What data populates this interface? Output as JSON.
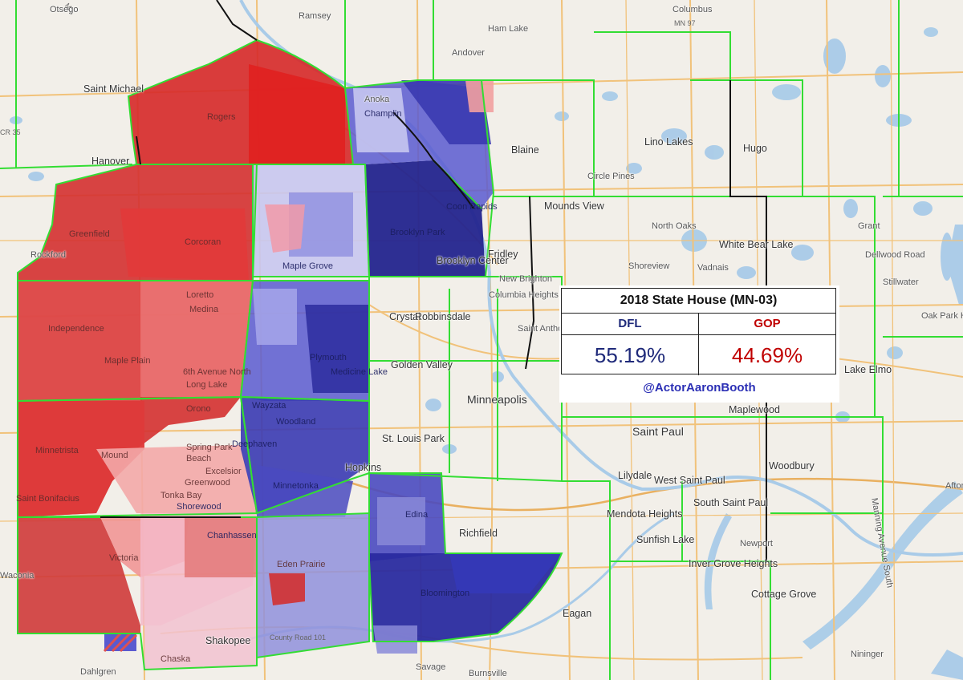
{
  "results": {
    "title": "2018 State House (MN-03)",
    "parties": [
      {
        "name": "DFL",
        "pct": "55.19%",
        "color": "#1f2a7a"
      },
      {
        "name": "GOP",
        "pct": "44.69%",
        "color": "#c00000"
      }
    ],
    "credit": "@ActorAaronBooth",
    "credit_color": "#2b2fb5"
  },
  "colors": {
    "base": "#f2efe9",
    "district_border": "#33dd33",
    "county_line": "#111111",
    "road": "#f1c27a",
    "water": "#a9cbe8",
    "red_strong": "#d62828",
    "red_mid": "#e86a6a",
    "red_light": "#f3a8a8",
    "blue_strong": "#2c2c9e",
    "blue_mid": "#5a5ad0",
    "blue_light": "#c6c6f0"
  },
  "places": {
    "otsego": "Otsego",
    "ramsey": "Ramsey",
    "columbus": "Columbus",
    "ham_lake": "Ham Lake",
    "andover": "Andover",
    "saint_michael": "Saint Michael",
    "anoka": "Anoka",
    "champlin": "Champlin",
    "rogers": "Rogers",
    "blaine": "Blaine",
    "lino_lakes": "Lino Lakes",
    "hugo": "Hugo",
    "hanover": "Hanover",
    "circle_pines": "Circle Pines",
    "coon_rapids": "Coon Rapids",
    "mounds_view": "Mounds View",
    "north_oaks": "North Oaks",
    "white_bear_lake": "White Bear Lake",
    "grant": "Grant",
    "greenfield": "Greenfield",
    "corcoran": "Corcoran",
    "brooklyn_park": "Brooklyn Park",
    "rockford": "Rockford",
    "maple_grove": "Maple Grove",
    "brooklyn_center": "Brooklyn Center",
    "fridley": "Fridley",
    "shoreview": "Shoreview",
    "vadnais": "Vadnais",
    "dellwood_road": "Dellwood Road",
    "new_brighton": "New Brighton",
    "stillwater": "Stillwater",
    "oak_park": "Oak Park He",
    "loretto": "Loretto",
    "medina": "Medina",
    "columbia_heights": "Columbia Heights",
    "independence": "Independence",
    "crystal": "Crystal",
    "robbinsdale": "Robbinsdale",
    "saint_anthony": "Saint Antho",
    "maple_plain": "Maple Plain",
    "plymouth": "Plymouth",
    "medicine_lake": "Medicine Lake",
    "golden_valley": "Golden Valley",
    "sixth_ave": "6th Avenue North",
    "long_lake": "Long Lake",
    "lake_elmo": "Lake Elmo",
    "wayzata": "Wayzata",
    "minneapolis": "Minneapolis",
    "orono": "Orono",
    "maplewood": "Maplewood",
    "woodland": "Woodland",
    "st_louis_park": "St. Louis Park",
    "saint_paul": "Saint Paul",
    "spring_park": "Spring Park",
    "deephaven": "Deephaven",
    "minnetrista": "Minnetrista",
    "beach": "Beach",
    "mound": "Mound",
    "hopkins": "Hopkins",
    "woodbury": "Woodbury",
    "excelsior": "Excelsior",
    "greenwood": "Greenwood",
    "minnetonka": "Minnetonka",
    "lilydale": "Lilydale",
    "west_saint_paul": "West Saint Paul",
    "saint_bonifacius": "Saint Bonifacius",
    "tonka_bay": "Tonka Bay",
    "shorewood": "Shorewood",
    "edina": "Edina",
    "south_saint_paul": "South Saint Paul",
    "mendota_heights": "Mendota Heights",
    "richfield": "Richfield",
    "sunfish_lake": "Sunfish Lake",
    "chanhassen": "Chanhassen",
    "newport": "Newport",
    "victoria": "Victoria",
    "eden_prairie": "Eden Prairie",
    "inver_grove_heights": "Inver Grove Heights",
    "bloomington": "Bloomington",
    "cottage_grove": "Cottage Grove",
    "eagan": "Eagan",
    "afton": "Afton",
    "manning": "Manning Avenue South",
    "waconia": "Waconia",
    "shakopee": "Shakopee",
    "chaska": "Chaska",
    "dahlgren": "Dahlgren",
    "savage": "Savage",
    "burnsville": "Burnsville",
    "nininger": "Nininger"
  },
  "roads": {
    "mn97": "MN 97",
    "cr35": "CR 35",
    "cr101": "County Road 101",
    "m5": "M..."
  }
}
